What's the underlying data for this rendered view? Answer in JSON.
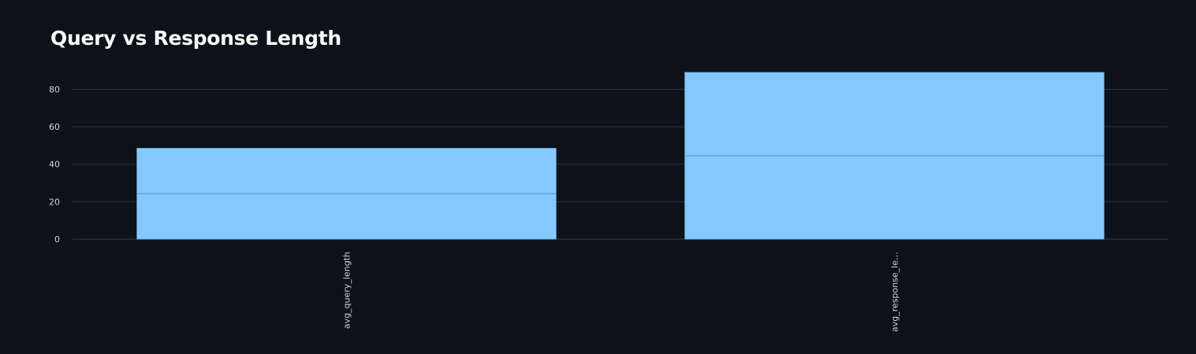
{
  "chart_data": {
    "type": "bar",
    "title": "Query vs Response Length",
    "categories": [
      "avg_query_length",
      "avg_response_le…"
    ],
    "values": [
      48.5,
      89
    ],
    "yticks": [
      0,
      20,
      40,
      60,
      80
    ],
    "ylim": [
      0,
      89
    ],
    "xlabel": "",
    "ylabel": "",
    "grid": true,
    "legend": "none",
    "colors": {
      "background": "#0e1117",
      "bar": "#83c9ff",
      "grid": "#31333f",
      "text": "#fafafa",
      "tick_label": "#d0d4db"
    }
  }
}
